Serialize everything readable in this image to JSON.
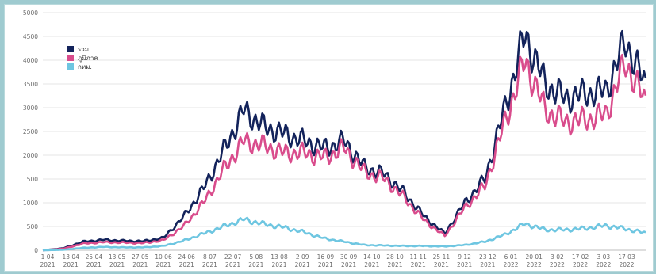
{
  "chart_data": {
    "type": "line",
    "title": "",
    "xlabel": "",
    "ylabel": "",
    "ylim": [
      0,
      5000
    ],
    "yticks": [
      0,
      500,
      1000,
      1500,
      2000,
      2500,
      3000,
      3500,
      4000,
      4500,
      5000
    ],
    "grid": true,
    "legend_position": "top-left",
    "x_ticks": [
      {
        "d": "1 04",
        "y": "2021"
      },
      {
        "d": "13 04",
        "y": "2021"
      },
      {
        "d": "25 04",
        "y": "2021"
      },
      {
        "d": "13 05",
        "y": "2021"
      },
      {
        "d": "27 05",
        "y": "2021"
      },
      {
        "d": "10 06",
        "y": "2021"
      },
      {
        "d": "24 06",
        "y": "2021"
      },
      {
        "d": "8 07",
        "y": "2021"
      },
      {
        "d": "22 07",
        "y": "2021"
      },
      {
        "d": "5 08",
        "y": "2021"
      },
      {
        "d": "13 08",
        "y": "2021"
      },
      {
        "d": "2 09",
        "y": "2021"
      },
      {
        "d": "16 09",
        "y": "2021"
      },
      {
        "d": "30 09",
        "y": "2021"
      },
      {
        "d": "14 10",
        "y": "2021"
      },
      {
        "d": "28 10",
        "y": "2021"
      },
      {
        "d": "11 11",
        "y": "2021"
      },
      {
        "d": "25 11",
        "y": "2021"
      },
      {
        "d": "9 12",
        "y": "2021"
      },
      {
        "d": "23 12",
        "y": "2021"
      },
      {
        "d": "6 01",
        "y": "2022"
      },
      {
        "d": "20 01",
        "y": "2022"
      },
      {
        "d": "3 02",
        "y": "2022"
      },
      {
        "d": "17 02",
        "y": "2022"
      },
      {
        "d": "3 03",
        "y": "2022"
      },
      {
        "d": "17 03",
        "y": "2022"
      }
    ],
    "series": [
      {
        "name": "รวม",
        "color": "#13235b",
        "values": [
          0,
          40,
          180,
          220,
          200,
          190,
          260,
          700,
          1300,
          2100,
          2950,
          2600,
          2450,
          2300,
          2150,
          2300,
          1750,
          1600,
          1200,
          700,
          350,
          1000,
          1500,
          3000,
          4550,
          3500,
          3200,
          3300,
          3350,
          4400,
          3450
        ]
      },
      {
        "name": "ภูมิภาค",
        "color": "#d94c8c",
        "values": [
          0,
          30,
          140,
          170,
          160,
          150,
          210,
          500,
          1000,
          1700,
          2300,
          2200,
          2050,
          2050,
          1950,
          2150,
          1650,
          1500,
          1100,
          620,
          300,
          900,
          1350,
          2700,
          4000,
          2950,
          2700,
          2750,
          2850,
          3950,
          3100
        ]
      },
      {
        "name": "กทม.",
        "color": "#6ec6e1",
        "values": [
          0,
          10,
          50,
          70,
          60,
          60,
          90,
          200,
          350,
          500,
          650,
          550,
          480,
          380,
          250,
          180,
          110,
          100,
          90,
          90,
          80,
          110,
          180,
          330,
          560,
          430,
          430,
          460,
          520,
          450,
          360
        ]
      }
    ]
  }
}
